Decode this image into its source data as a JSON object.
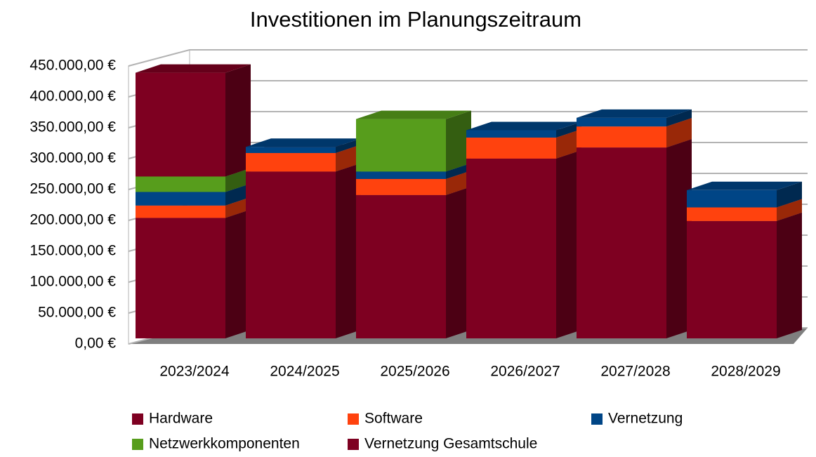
{
  "chart_data": {
    "type": "bar3d_stacked",
    "title": "Investitionen im Planungszeitraum",
    "categories": [
      "2023/2024",
      "2024/2025",
      "2025/2026",
      "2026/2027",
      "2027/2028",
      "2028/2029"
    ],
    "series": [
      {
        "name": "Hardware",
        "color": "#7e0021",
        "values": [
          195000,
          270000,
          232000,
          291000,
          309000,
          190000
        ]
      },
      {
        "name": "Software",
        "color": "#ff420e",
        "values": [
          20000,
          30000,
          26000,
          34000,
          34000,
          22000
        ]
      },
      {
        "name": "Vernetzung",
        "color": "#004586",
        "values": [
          22000,
          10000,
          12000,
          12000,
          14000,
          28000
        ]
      },
      {
        "name": "Netzwerkkomponenten",
        "color": "#579d1c",
        "values": [
          25000,
          0,
          85000,
          0,
          0,
          0
        ]
      },
      {
        "name": "Vernetzung Gesamtschule",
        "color": "#7e0021",
        "values": [
          168000,
          0,
          0,
          0,
          0,
          0
        ]
      }
    ],
    "ylim": [
      0,
      450000
    ],
    "yticks": [
      {
        "value": 0,
        "label": "0,00 €"
      },
      {
        "value": 50000,
        "label": "50.000,00 €"
      },
      {
        "value": 100000,
        "label": "100.000,00 €"
      },
      {
        "value": 150000,
        "label": "150.000,00 €"
      },
      {
        "value": 200000,
        "label": "200.000,00 €"
      },
      {
        "value": 250000,
        "label": "250.000,00 €"
      },
      {
        "value": 300000,
        "label": "300.000,00 €"
      },
      {
        "value": 350000,
        "label": "350.000,00 €"
      },
      {
        "value": 400000,
        "label": "400.000,00 €"
      },
      {
        "value": 450000,
        "label": "450.000,00 €"
      }
    ],
    "grid": true,
    "legend": "bottom"
  }
}
